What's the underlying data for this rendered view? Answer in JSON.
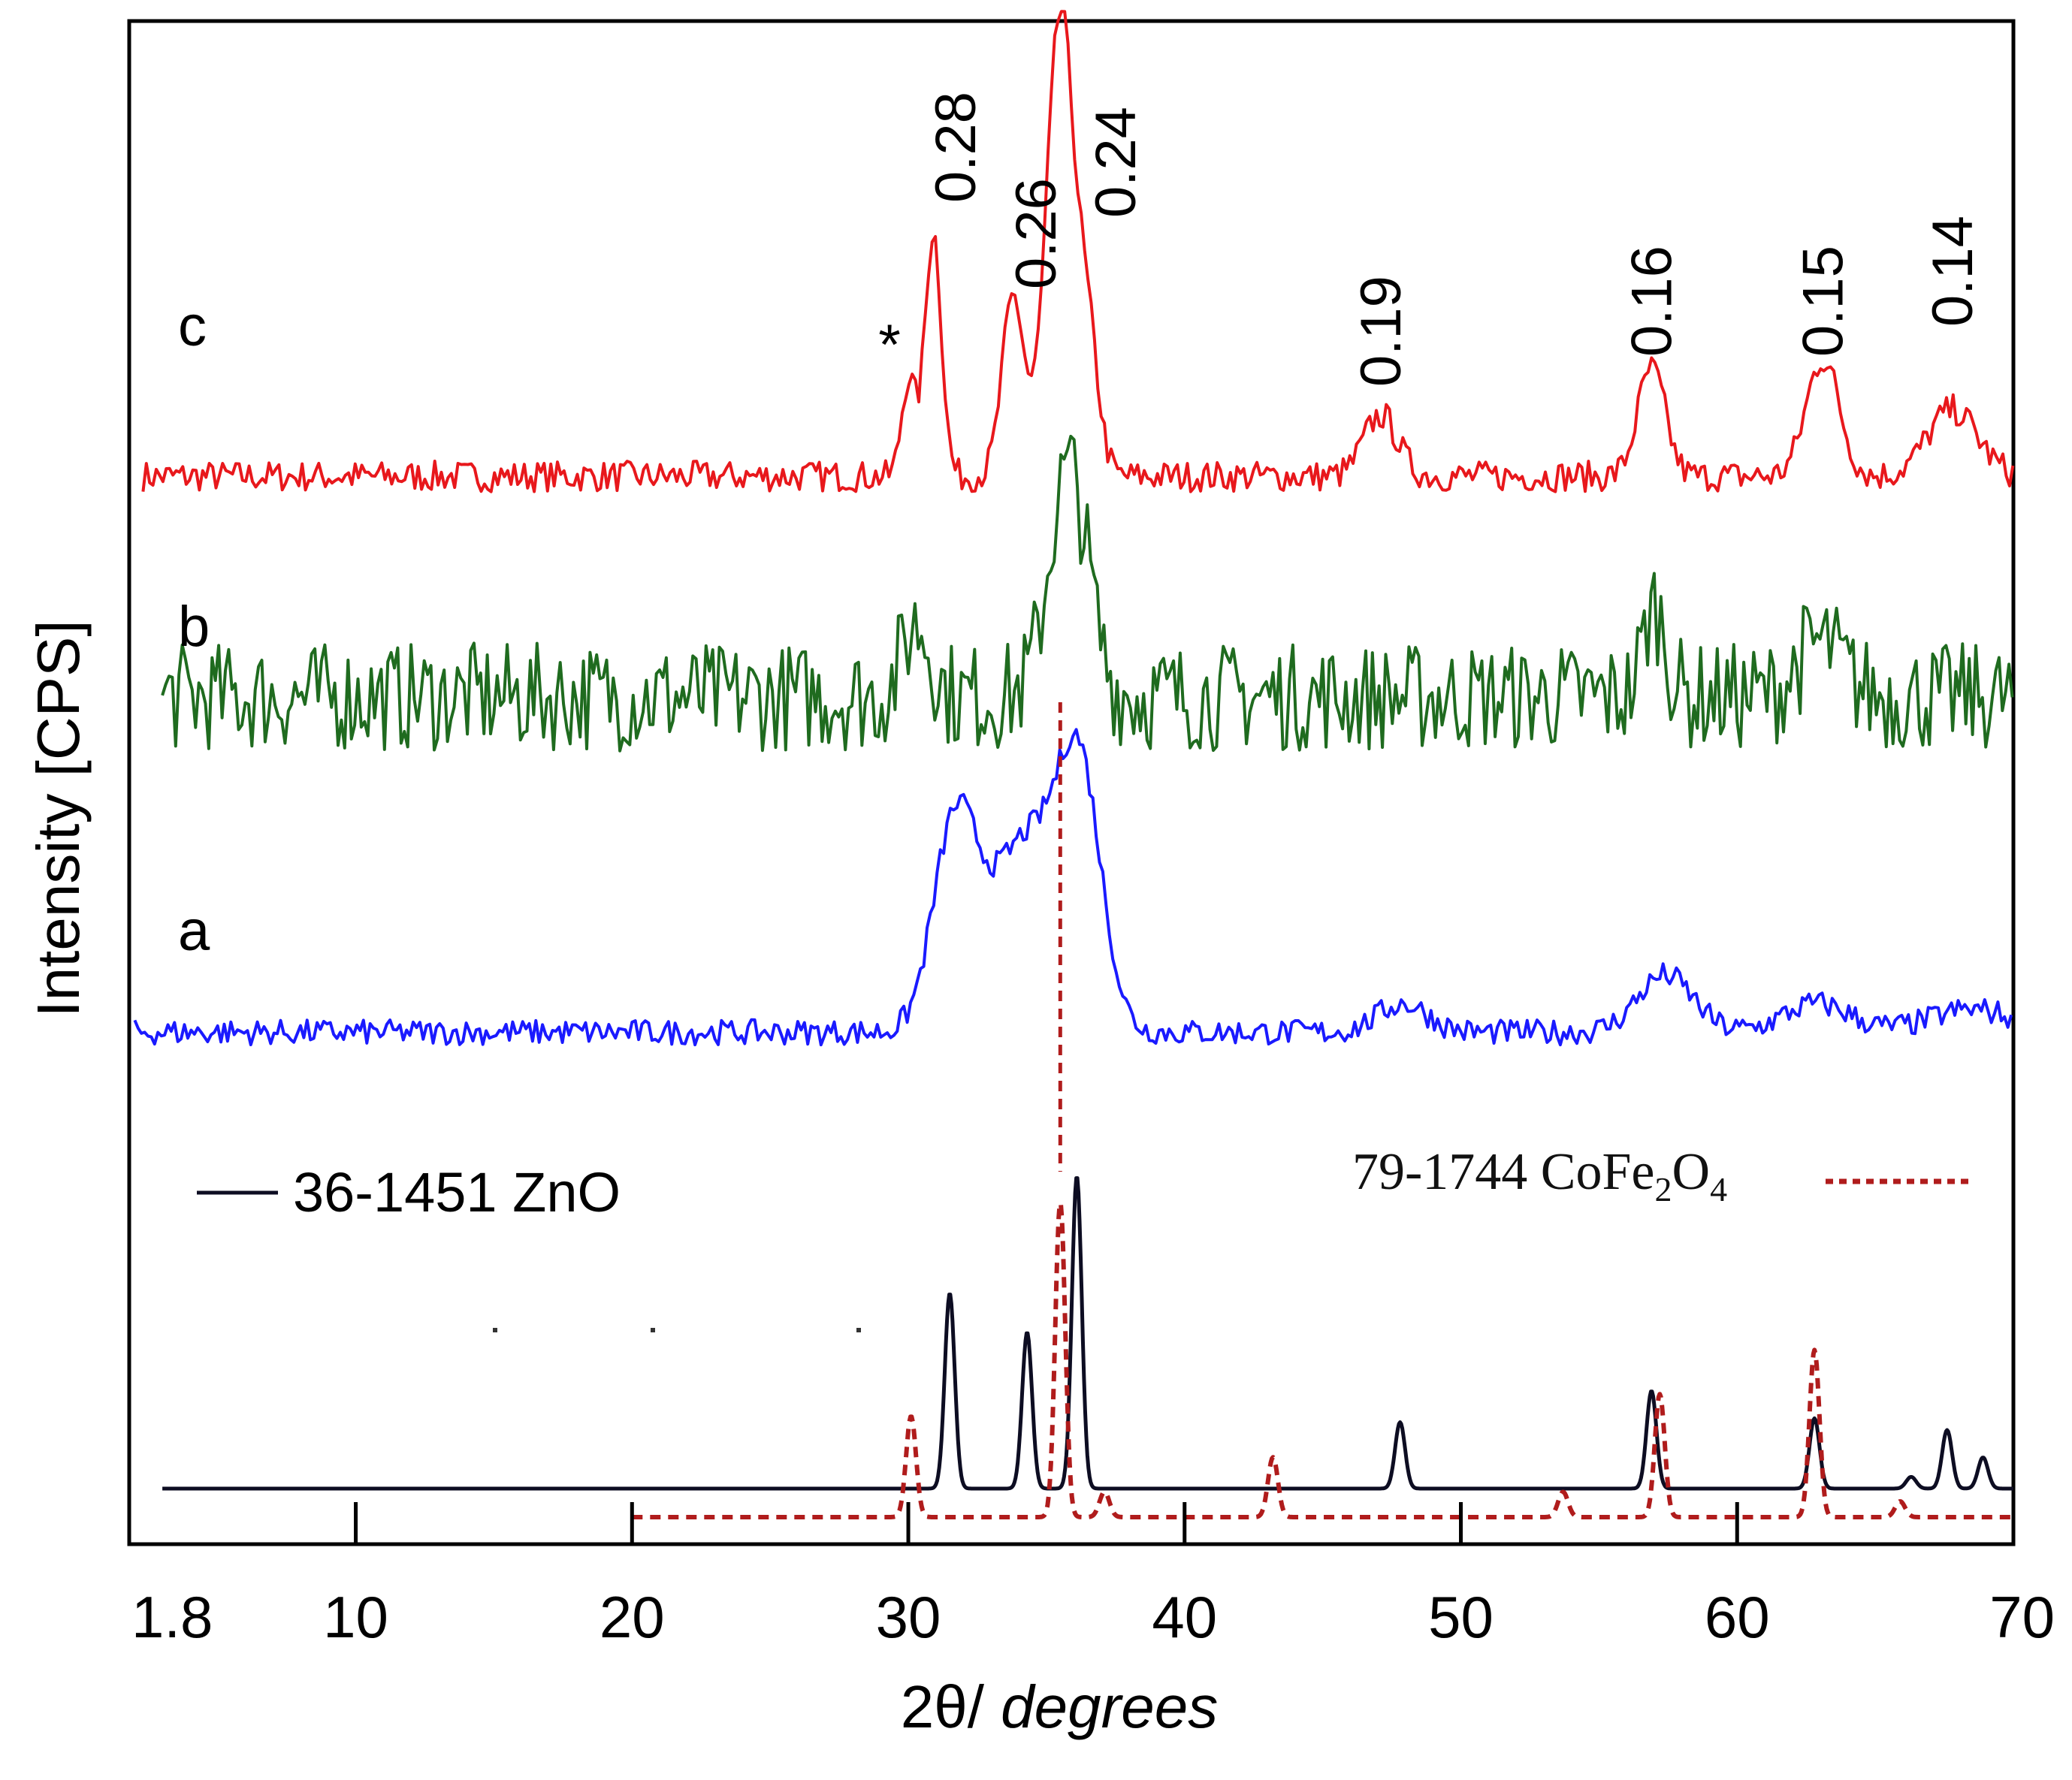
{
  "chart_data": {
    "type": "line",
    "title": "",
    "xlabel_prefix": "2θ/ ",
    "xlabel_italic": "degrees",
    "ylabel": "Intensity [CPS]",
    "xlim": [
      1.8,
      70
    ],
    "x_ticks": [
      10,
      20,
      30,
      40,
      50,
      60
    ],
    "x_tick_labels": [
      "1.8",
      "10",
      "20",
      "30",
      "40",
      "50",
      "60",
      "70"
    ],
    "series": [
      {
        "name": "c",
        "color": "#e8181c",
        "start_x": 2.3,
        "baseline": 0.82,
        "noise": 0.3,
        "peaks": [
          {
            "x": 30.0,
            "h": 1.9,
            "w": 0.25
          },
          {
            "x": 30.9,
            "h": 4.8,
            "w": 0.3
          },
          {
            "x": 33.8,
            "h": 3.5,
            "w": 0.4
          },
          {
            "x": 35.5,
            "h": 9.0,
            "w": 0.5
          },
          {
            "x": 36.5,
            "h": 2.5,
            "w": 0.4
          },
          {
            "x": 47.1,
            "h": 1.2,
            "w": 0.6
          },
          {
            "x": 56.9,
            "h": 2.1,
            "w": 0.5
          },
          {
            "x": 63.1,
            "h": 2.3,
            "w": 0.6
          },
          {
            "x": 67.8,
            "h": 1.3,
            "w": 0.9
          }
        ]
      },
      {
        "name": "b",
        "color": "#1f6b1f",
        "start_x": 3.0,
        "baseline": 0.9,
        "noise": 0.9,
        "peaks": [
          {
            "x": 30.3,
            "h": 1.2,
            "w": 0.5
          },
          {
            "x": 35.8,
            "h": 3.8,
            "w": 0.7
          },
          {
            "x": 57.0,
            "h": 1.5,
            "w": 0.4
          },
          {
            "x": 63.0,
            "h": 0.9,
            "w": 0.8
          }
        ]
      },
      {
        "name": "a",
        "color": "#1a1aff",
        "start_x": 2.0,
        "baseline": 0.6,
        "noise": 0.22,
        "peaks": [
          {
            "x": 31.7,
            "h": 3.6,
            "w": 0.8
          },
          {
            "x": 34.2,
            "h": 3.3,
            "w": 1.2
          },
          {
            "x": 36.2,
            "h": 4.3,
            "w": 0.8
          },
          {
            "x": 47.9,
            "h": 0.5,
            "w": 0.9
          },
          {
            "x": 57.4,
            "h": 1.0,
            "w": 1.0
          },
          {
            "x": 62.9,
            "h": 0.5,
            "w": 1.2
          },
          {
            "x": 68.5,
            "h": 0.4,
            "w": 1.5
          }
        ]
      },
      {
        "name": "36-1451 ZnO",
        "color": "#0d0d22",
        "reference": true,
        "start_x": 3.0,
        "peaks": [
          {
            "x": 31.5,
            "h": 0.5
          },
          {
            "x": 34.3,
            "h": 0.4
          },
          {
            "x": 36.1,
            "h": 0.8
          },
          {
            "x": 47.8,
            "h": 0.17
          },
          {
            "x": 56.9,
            "h": 0.25
          },
          {
            "x": 62.8,
            "h": 0.18
          },
          {
            "x": 66.3,
            "h": 0.03
          },
          {
            "x": 67.6,
            "h": 0.15
          },
          {
            "x": 68.9,
            "h": 0.08
          }
        ]
      },
      {
        "name": "79-1744 CoFe2O4",
        "color": "#b01c1c",
        "reference": true,
        "start_x": 20.0,
        "peaks": [
          {
            "x": 30.1,
            "h": 0.32
          },
          {
            "x": 35.5,
            "h": 1.0
          },
          {
            "x": 37.1,
            "h": 0.08
          },
          {
            "x": 43.2,
            "h": 0.19
          },
          {
            "x": 53.7,
            "h": 0.08
          },
          {
            "x": 57.2,
            "h": 0.39
          },
          {
            "x": 62.8,
            "h": 0.53
          },
          {
            "x": 65.9,
            "h": 0.05
          }
        ]
      }
    ],
    "panel_labels": [
      "c",
      "b",
      "a"
    ],
    "asterisk": "*",
    "d_spacings": [
      {
        "label": "0.28",
        "x": 30.9
      },
      {
        "label": "0.26",
        "x": 33.8
      },
      {
        "label": "0.24",
        "x": 37.5
      },
      {
        "label": "0.19",
        "x": 47.1
      },
      {
        "label": "0.16",
        "x": 56.9
      },
      {
        "label": "0.15",
        "x": 63.1
      },
      {
        "label": "0.14",
        "x": 67.8
      }
    ],
    "legend": {
      "zno_label": "36-1451  ZnO",
      "cofe_prefix": "79-1744  CoFe",
      "cofe_sub1": "2",
      "cofe_mid": "O",
      "cofe_sub2": "4"
    }
  }
}
